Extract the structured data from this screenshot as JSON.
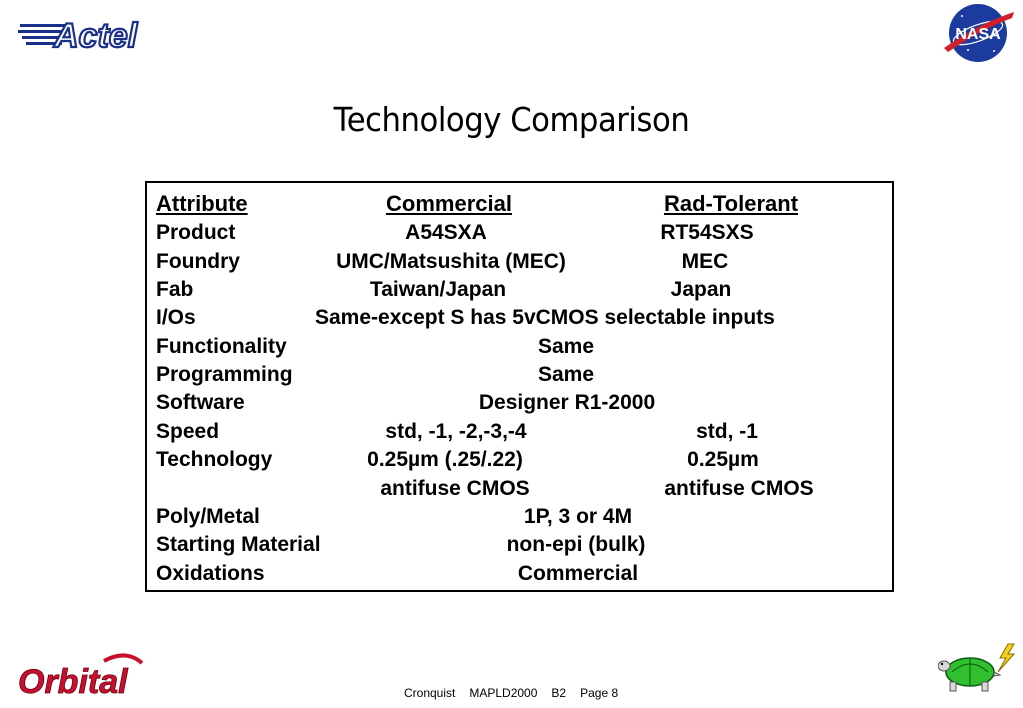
{
  "logos": {
    "actel": "Actel",
    "nasa": "NASA",
    "orbital": "Orbital"
  },
  "title": "Technology Comparison",
  "table": {
    "headers": {
      "attribute": "Attribute",
      "commercial": "Commercial",
      "rad_tolerant": "Rad-Tolerant"
    },
    "rows": {
      "product": {
        "label": "Product",
        "commercial": "A54SXA",
        "rad_tolerant": "RT54SXS"
      },
      "foundry": {
        "label": "Foundry",
        "commercial": "UMC/Matsushita (MEC)",
        "rad_tolerant": "MEC"
      },
      "fab": {
        "label": "Fab",
        "commercial": "Taiwan/Japan",
        "rad_tolerant": "Japan"
      },
      "ios": {
        "label": "I/Os",
        "value": "Same-except S has 5vCMOS selectable inputs"
      },
      "functionality": {
        "label": "Functionality",
        "value": "Same"
      },
      "programming": {
        "label": "Programming",
        "value": "Same"
      },
      "software": {
        "label": "Software",
        "value": "Designer R1-2000"
      },
      "speed": {
        "label": "Speed",
        "commercial": "std, -1, -2,-3,-4",
        "rad_tolerant": "std, -1"
      },
      "technology": {
        "label": "Technology",
        "commercial": "0.25µm (.25/.22)",
        "rad_tolerant": "0.25µm",
        "commercial_2": "antifuse CMOS",
        "rad_tolerant_2": "antifuse CMOS"
      },
      "poly_metal": {
        "label": "Poly/Metal",
        "value": "1P, 3 or 4M"
      },
      "starting_material": {
        "label": "Starting Material",
        "value": "non-epi (bulk)"
      },
      "oxidations": {
        "label": "Oxidations",
        "value": "Commercial"
      }
    }
  },
  "footer": {
    "author": "Cronquist",
    "conference": "MAPLD2000",
    "session": "B2",
    "page": "Page 8"
  }
}
